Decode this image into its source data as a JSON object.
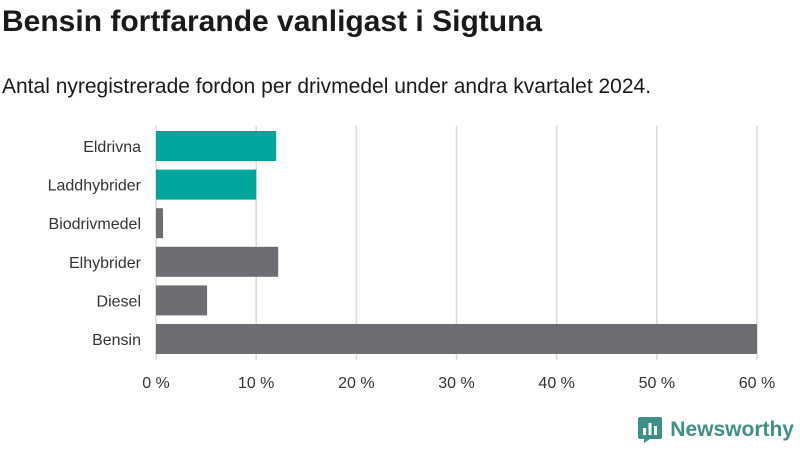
{
  "colors": {
    "electric": "#00a69c",
    "other": "#6e6d73",
    "grid": "#d9d9d9",
    "brand": "#3d8f88"
  },
  "logo": {
    "text": "Newsworthy",
    "icon": "newsworthy-logo-icon"
  },
  "chart_data": {
    "type": "bar",
    "orientation": "horizontal",
    "title": "Bensin fortfarande vanligast i Sigtuna",
    "subtitle": "Antal nyregistrerade fordon per drivmedel under andra kvartalet 2024.",
    "xlabel": "",
    "ylabel": "",
    "xlim": [
      0,
      60
    ],
    "ticks": [
      0,
      10,
      20,
      30,
      40,
      50,
      60
    ],
    "tick_labels": [
      "0 %",
      "10 %",
      "20 %",
      "30 %",
      "40 %",
      "50 %",
      "60 %"
    ],
    "grid": true,
    "categories": [
      "Eldrivna",
      "Laddhybrider",
      "Biodrivmedel",
      "Elhybrider",
      "Diesel",
      "Bensin"
    ],
    "values": [
      12,
      10,
      0.7,
      12.2,
      5.1,
      60
    ],
    "groups": [
      "electric",
      "electric",
      "other",
      "other",
      "other",
      "other"
    ]
  }
}
